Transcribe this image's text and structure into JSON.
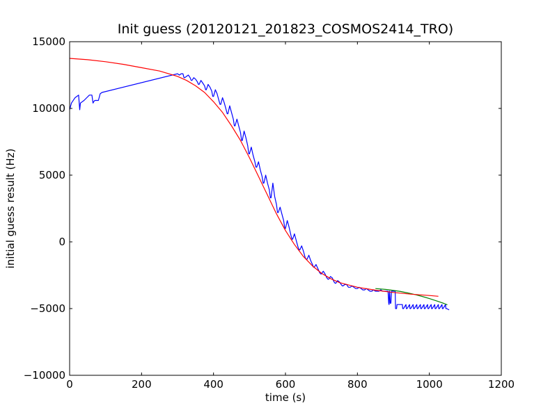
{
  "chart_data": {
    "type": "line",
    "title": "Init guess (20120121_201823_COSMOS2414_TRO)",
    "xlabel": "time (s)",
    "ylabel": "initial guess result (Hz)",
    "xlim": [
      0,
      1200
    ],
    "ylim": [
      -10000,
      15000
    ],
    "x_ticks": [
      0,
      200,
      400,
      600,
      800,
      1000,
      1200
    ],
    "y_ticks": [
      -10000,
      -5000,
      0,
      5000,
      10000,
      15000
    ],
    "x_tick_labels": [
      "0",
      "200",
      "400",
      "600",
      "800",
      "1000",
      "1200"
    ],
    "y_tick_labels": [
      "−10000",
      "−5000",
      "0",
      "5000",
      "10000",
      "15000"
    ],
    "grid": false,
    "legend": "none",
    "series": [
      {
        "color": "#0000ff",
        "x": [
          0,
          5,
          15,
          25,
          28,
          30,
          40,
          55,
          62,
          65,
          67,
          70,
          80,
          85,
          90,
          300,
          300,
          305,
          310,
          315,
          318,
          320,
          325,
          330,
          335,
          338,
          340,
          345,
          350,
          355,
          358,
          360,
          365,
          370,
          375,
          378,
          380,
          385,
          390,
          395,
          398,
          400,
          405,
          410,
          415,
          418,
          420,
          425,
          430,
          435,
          438,
          440,
          445,
          450,
          455,
          458,
          460,
          465,
          470,
          475,
          478,
          480,
          485,
          490,
          495,
          498,
          500,
          505,
          510,
          515,
          518,
          520,
          525,
          530,
          535,
          538,
          540,
          545,
          550,
          555,
          558,
          560,
          565,
          570,
          575,
          578,
          580,
          585,
          590,
          595,
          598,
          600,
          605,
          610,
          615,
          618,
          620,
          625,
          630,
          635,
          638,
          640,
          645,
          650,
          655,
          658,
          660,
          665,
          670,
          675,
          678,
          680,
          685,
          690,
          695,
          698,
          700,
          705,
          710,
          715,
          718,
          720,
          725,
          730,
          735,
          738,
          740,
          745,
          750,
          755,
          758,
          760,
          765,
          770,
          775,
          778,
          780,
          785,
          790,
          795,
          798,
          800,
          805,
          810,
          815,
          818,
          820,
          825,
          830,
          835,
          838,
          840,
          845,
          850,
          855,
          858,
          860,
          865,
          870,
          875,
          878,
          880,
          885,
          887,
          888,
          889,
          890,
          891,
          893,
          895,
          900,
          905,
          906,
          907,
          909,
          910,
          915,
          920,
          925,
          926,
          928,
          935,
          936,
          938,
          945,
          946,
          948,
          955,
          956,
          958,
          965,
          966,
          968,
          975,
          976,
          978,
          985,
          986,
          988,
          995,
          996,
          998,
          1005,
          1006,
          1008,
          1015,
          1016,
          1018,
          1025,
          1026,
          1028,
          1035,
          1036,
          1038,
          1045,
          1046,
          1048,
          1055
        ],
        "y": [
          9900,
          10400,
          10800,
          11000,
          9900,
          10400,
          10600,
          11000,
          11000,
          10400,
          10500,
          10600,
          10600,
          11100,
          11200,
          12600,
          12600,
          12500,
          12600,
          12600,
          12300,
          12300,
          12400,
          12500,
          12300,
          12100,
          12100,
          12300,
          12200,
          12000,
          11800,
          11800,
          12100,
          11900,
          11700,
          11400,
          11400,
          11800,
          11600,
          11300,
          10900,
          10900,
          11400,
          11100,
          10600,
          10300,
          10300,
          10800,
          10400,
          9900,
          9600,
          9600,
          10200,
          9700,
          9200,
          8700,
          8700,
          9200,
          8700,
          8200,
          7600,
          7600,
          8300,
          7800,
          7200,
          6600,
          6600,
          7100,
          6500,
          6000,
          5600,
          5600,
          6000,
          5400,
          4900,
          4400,
          4400,
          5000,
          4400,
          3900,
          3300,
          3300,
          4400,
          3400,
          2800,
          2200,
          2200,
          2600,
          2100,
          1600,
          1000,
          1000,
          1600,
          1100,
          500,
          200,
          200,
          600,
          100,
          -400,
          -600,
          -600,
          -300,
          -700,
          -1200,
          -1300,
          -1300,
          -1000,
          -1400,
          -1700,
          -1900,
          -1900,
          -1700,
          -2000,
          -2300,
          -2400,
          -2400,
          -2200,
          -2400,
          -2700,
          -2800,
          -2800,
          -2600,
          -2700,
          -3000,
          -3100,
          -3100,
          -2900,
          -3000,
          -3200,
          -3300,
          -3300,
          -3200,
          -3200,
          -3400,
          -3400,
          -3400,
          -3300,
          -3400,
          -3500,
          -3500,
          -3500,
          -3400,
          -3500,
          -3600,
          -3600,
          -3600,
          -3500,
          -3600,
          -3700,
          -3700,
          -3700,
          -3600,
          -3700,
          -3700,
          -3700,
          -3700,
          -3600,
          -3700,
          -3700,
          -3700,
          -3700,
          -3700,
          -4600,
          -4700,
          -3700,
          -3700,
          -4600,
          -4600,
          -3700,
          -3700,
          -3700,
          -5000,
          -5000,
          -5000,
          -4700,
          -4700,
          -4700,
          -4700,
          -5000,
          -5000,
          -4700,
          -5000,
          -5000,
          -4700,
          -5000,
          -5000,
          -4700,
          -5000,
          -5000,
          -4700,
          -5000,
          -5000,
          -4700,
          -5000,
          -5000,
          -4700,
          -5000,
          -5000,
          -4700,
          -5000,
          -5000,
          -4700,
          -5000,
          -5000,
          -4700,
          -5000,
          -5000,
          -4700,
          -5000,
          -5000,
          -4700,
          -5000,
          -5000,
          -4700,
          -5000,
          -5000,
          -5100
        ]
      },
      {
        "color": "#008000",
        "x": [
          850,
          880,
          900,
          920,
          940,
          960,
          980,
          1000,
          1020,
          1040,
          1050
        ],
        "y": [
          -3500,
          -3570,
          -3640,
          -3720,
          -3830,
          -3950,
          -4090,
          -4250,
          -4420,
          -4610,
          -4720
        ]
      },
      {
        "color": "#ff0000",
        "x": [
          0,
          50,
          100,
          150,
          200,
          250,
          300,
          325,
          350,
          375,
          400,
          425,
          450,
          475,
          500,
          525,
          550,
          575,
          600,
          625,
          650,
          675,
          700,
          725,
          750,
          800,
          850,
          900,
          950,
          1000,
          1025
        ],
        "y": [
          13750,
          13650,
          13500,
          13300,
          13050,
          12800,
          12400,
          12100,
          11700,
          11200,
          10500,
          9700,
          8700,
          7600,
          6300,
          4900,
          3500,
          2100,
          850,
          -200,
          -1100,
          -1800,
          -2350,
          -2750,
          -3050,
          -3400,
          -3620,
          -3790,
          -3920,
          -4020,
          -4080
        ]
      }
    ]
  }
}
